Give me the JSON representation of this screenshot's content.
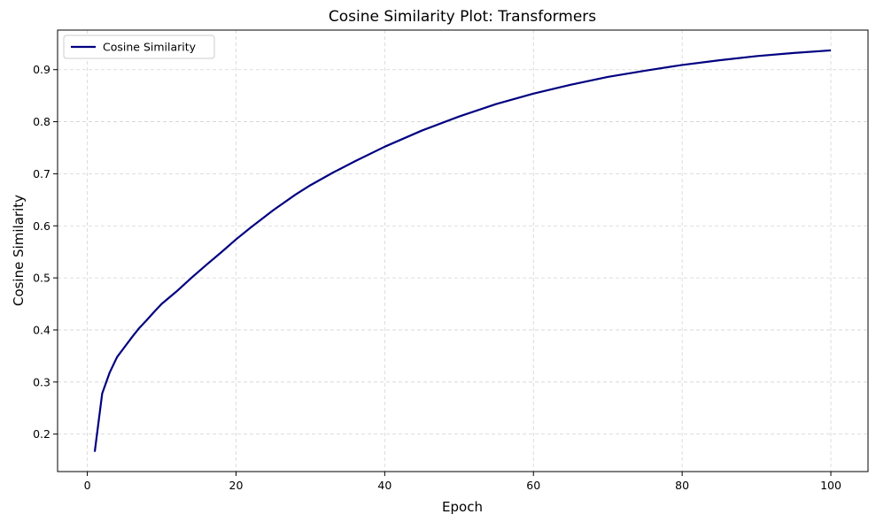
{
  "chart_data": {
    "type": "line",
    "title": "Cosine Similarity Plot: Transformers",
    "xlabel": "Epoch",
    "ylabel": "Cosine Similarity",
    "xlim": [
      -4,
      105
    ],
    "ylim": [
      0.128,
      0.976
    ],
    "xticks": [
      0,
      20,
      40,
      60,
      80,
      100
    ],
    "yticks": [
      0.2,
      0.3,
      0.4,
      0.5,
      0.6,
      0.7,
      0.8,
      0.9
    ],
    "grid": true,
    "legend_position": "top-left",
    "series": [
      {
        "name": "Cosine Similarity",
        "color": "#000080",
        "x": [
          1,
          2,
          3,
          4,
          5,
          6,
          7,
          8,
          9,
          10,
          12,
          14,
          16,
          18,
          20,
          22,
          25,
          28,
          30,
          33,
          36,
          40,
          45,
          50,
          55,
          60,
          65,
          70,
          75,
          80,
          85,
          90,
          95,
          100
        ],
        "y": [
          0.166,
          0.278,
          0.318,
          0.348,
          0.367,
          0.386,
          0.404,
          0.419,
          0.435,
          0.45,
          0.474,
          0.5,
          0.525,
          0.549,
          0.574,
          0.597,
          0.63,
          0.66,
          0.678,
          0.702,
          0.724,
          0.752,
          0.783,
          0.81,
          0.834,
          0.854,
          0.871,
          0.886,
          0.898,
          0.909,
          0.918,
          0.926,
          0.932,
          0.937
        ]
      }
    ]
  }
}
